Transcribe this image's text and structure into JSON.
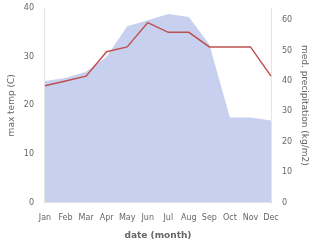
{
  "chart_data": {
    "type": "line",
    "xlabel": "date (month)",
    "ylabel": "max temp (C)",
    "y2label": "med. precipitation (kg/m2)",
    "categories": [
      "Jan",
      "Feb",
      "Mar",
      "Apr",
      "May",
      "Jun",
      "Jul",
      "Aug",
      "Sep",
      "Oct",
      "Nov",
      "Dec"
    ],
    "series": [
      {
        "type": "line",
        "color": "#c0504d",
        "values": [
          24,
          25,
          26,
          31,
          32,
          37,
          35,
          35,
          32,
          32,
          32,
          26
        ]
      },
      {
        "type": "area",
        "color": "#c8d0f0",
        "axis": "y2",
        "values": [
          40,
          41,
          43,
          48,
          58,
          60,
          62,
          61,
          52,
          28,
          28,
          27
        ]
      }
    ],
    "ylim": [
      0,
      40
    ],
    "yticks": [
      0,
      10,
      20,
      30,
      40
    ],
    "y2lim": [
      0,
      64
    ],
    "y2ticks": [
      0,
      10,
      20,
      30,
      40,
      50,
      60
    ],
    "grid": false
  }
}
